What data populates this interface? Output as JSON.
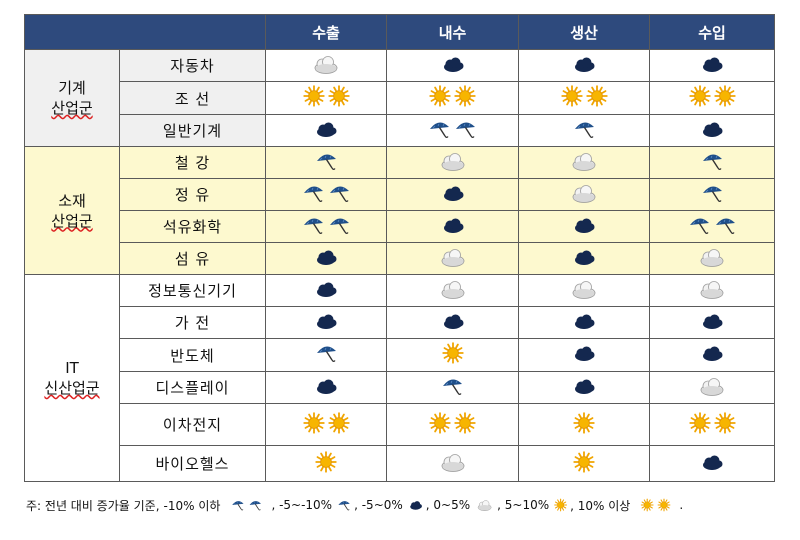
{
  "header": {
    "corner": "",
    "cols": [
      "수출",
      "내수",
      "생산",
      "수입"
    ]
  },
  "groups": [
    {
      "label_line1": "기계",
      "label_line2": "산업군",
      "bg": "gray",
      "rows": [
        {
          "name": "자동차",
          "cells": [
            "cloudy",
            "cloud",
            "cloud",
            "cloud"
          ]
        },
        {
          "name": "조 선",
          "cells": [
            "sun2",
            "sun2",
            "sun2",
            "sun2"
          ]
        },
        {
          "name": "일반기계",
          "cells": [
            "cloud",
            "umbrella2",
            "umbrella",
            "cloud"
          ]
        }
      ]
    },
    {
      "label_line1": "소재",
      "label_line2": "산업군",
      "bg": "yellow",
      "rows": [
        {
          "name": "철 강",
          "cells": [
            "umbrella",
            "cloudy",
            "cloudy",
            "umbrella"
          ]
        },
        {
          "name": "정 유",
          "cells": [
            "umbrella2",
            "cloud",
            "cloudy",
            "umbrella"
          ]
        },
        {
          "name": "석유화학",
          "cells": [
            "umbrella2",
            "cloud",
            "cloud",
            "umbrella2"
          ]
        },
        {
          "name": "섬 유",
          "cells": [
            "cloud",
            "cloudy",
            "cloud",
            "cloudy"
          ]
        }
      ]
    },
    {
      "label_line1": "IT",
      "label_line2": "신산업군",
      "bg": "white",
      "rows": [
        {
          "name": "정보통신기기",
          "cells": [
            "cloud",
            "cloudy",
            "cloudy",
            "cloudy"
          ]
        },
        {
          "name": "가 전",
          "cells": [
            "cloud",
            "cloud",
            "cloud",
            "cloud"
          ]
        },
        {
          "name": "반도체",
          "cells": [
            "umbrella",
            "sun",
            "cloud",
            "cloud"
          ]
        },
        {
          "name": "디스플레이",
          "cells": [
            "cloud",
            "umbrella",
            "cloud",
            "cloudy"
          ]
        },
        {
          "name": "이차전지",
          "cells": [
            "sun2",
            "sun2",
            "sun",
            "sun2"
          ]
        },
        {
          "name": "바이오헬스",
          "cells": [
            "sun",
            "cloudy",
            "sun",
            "cloud"
          ]
        }
      ]
    }
  ],
  "icon_names": {
    "umbrella2": "two-umbrellas-icon",
    "umbrella": "umbrella-icon",
    "cloud": "dark-cloud-icon",
    "cloudy": "light-cloud-icon",
    "sun": "sun-icon",
    "sun2": "two-suns-icon"
  },
  "footnote": {
    "prefix": "주: 전년 대비 증가율 기준,",
    "items": [
      {
        "text": "-10% 이하",
        "icon": "umbrella2"
      },
      {
        "text": ", -5~-10%",
        "icon": "umbrella"
      },
      {
        "text": ", -5~0%",
        "icon": "cloud"
      },
      {
        "text": ", 0~5%",
        "icon": "cloudy"
      },
      {
        "text": ", 5~10%",
        "icon": "sun"
      },
      {
        "text": ", 10% 이상",
        "icon": "sun2"
      }
    ],
    "suffix": "."
  },
  "colors": {
    "header_bg": "#2e4a7d",
    "gray_bg": "#f0f0f0",
    "yellow_bg": "#fdf9cf",
    "umbrella": "#1f4f8a",
    "dark_cloud": "#14284f",
    "sun": "#f0a500"
  }
}
